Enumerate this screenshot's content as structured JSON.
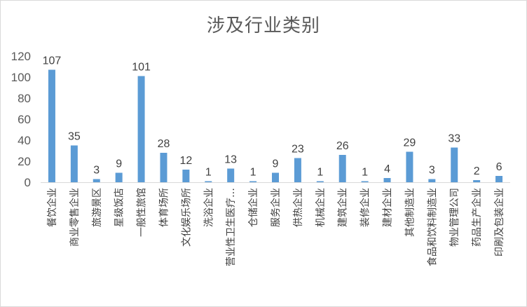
{
  "chart_data": {
    "type": "bar",
    "title": "涉及行业类别",
    "xlabel": "",
    "ylabel": "",
    "ylim": [
      0,
      120
    ],
    "yticks": [
      0,
      20,
      40,
      60,
      80,
      100,
      120
    ],
    "grid": false,
    "legend": "none",
    "bar_color": "#5b9bd5",
    "categories": [
      "餐饮企业",
      "商业零售企业",
      "旅游景区",
      "星级饭店",
      "一般性旅馆",
      "体育场所",
      "文化娱乐场所",
      "洗浴企业",
      "营业性卫生医疗…",
      "仓储企业",
      "服务企业",
      "供热企业",
      "机械企业",
      "建筑企业",
      "装修企业",
      "建材企业",
      "其他制造业",
      "食品和饮料制造业",
      "物业管理公司",
      "药品生产企业",
      "印刷及包装企业"
    ],
    "values": [
      107,
      35,
      3,
      9,
      101,
      28,
      12,
      1,
      13,
      1,
      9,
      23,
      1,
      26,
      1,
      4,
      29,
      3,
      33,
      2,
      6
    ],
    "data_labels": [
      "107",
      "35",
      "3",
      "9",
      "101",
      "28",
      "12",
      "1",
      "13",
      "1",
      "9",
      "23",
      "1",
      "26",
      "1",
      "4",
      "29",
      "3",
      "33",
      "2",
      "6"
    ]
  }
}
